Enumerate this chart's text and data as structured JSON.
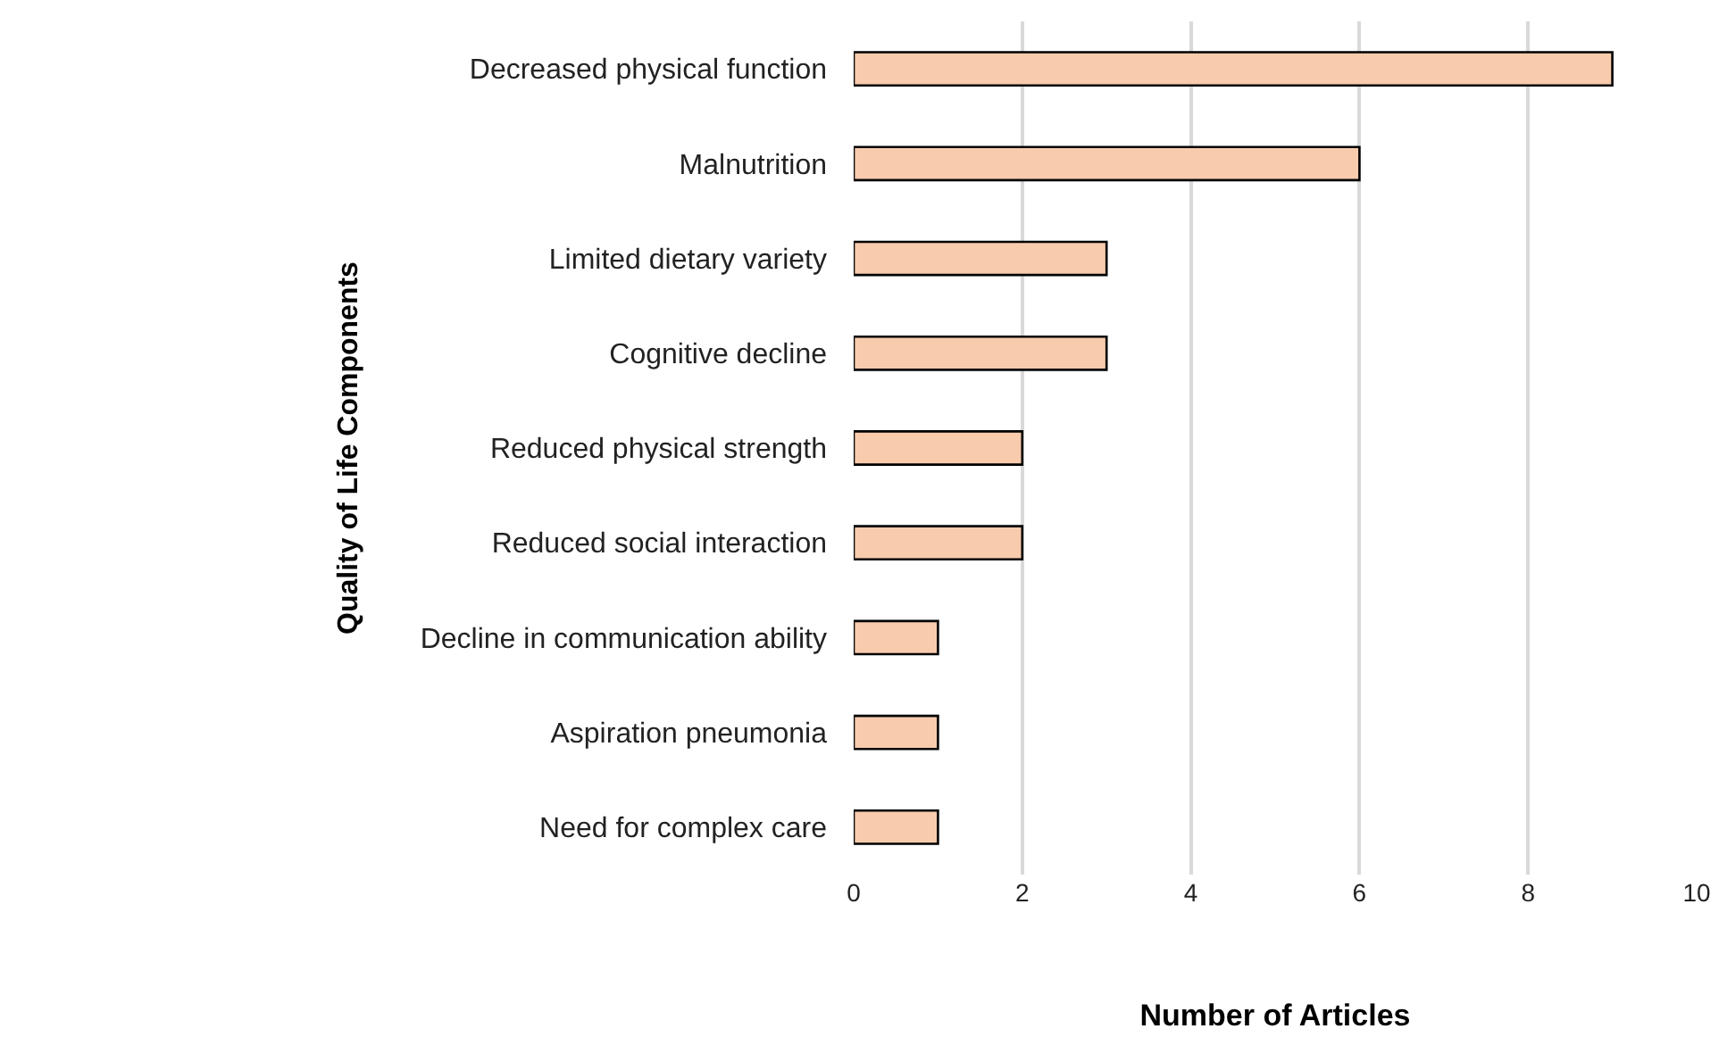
{
  "chart_data": {
    "type": "bar",
    "orientation": "horizontal",
    "categories": [
      "Decreased physical function",
      "Malnutrition",
      "Limited dietary variety",
      "Cognitive decline",
      "Reduced physical strength",
      "Reduced social interaction",
      "Decline in communication ability",
      "Aspiration pneumonia",
      "Need for complex care"
    ],
    "values": [
      9,
      6,
      3,
      3,
      2,
      2,
      1,
      1,
      1
    ],
    "color": "#f8cbad",
    "xlim": [
      0,
      10
    ],
    "xticks": [
      0,
      2,
      4,
      6,
      8,
      10
    ],
    "xlabel": "Number of Articles",
    "ylabel": "Quality of Life Components",
    "grid": "x"
  }
}
